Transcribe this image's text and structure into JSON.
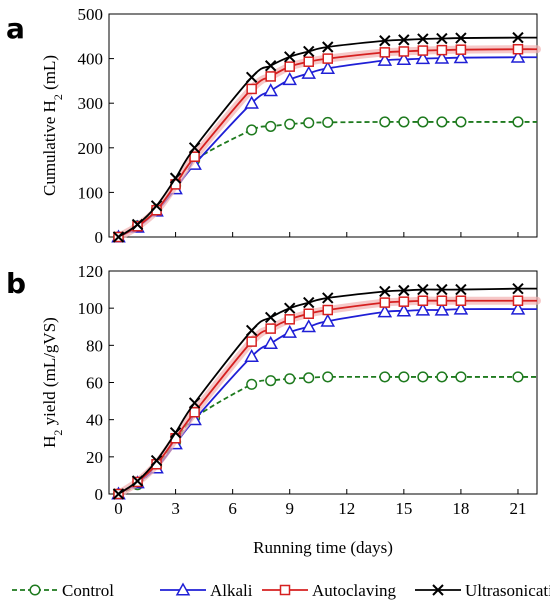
{
  "figure": {
    "legend": {
      "placement": "bottom",
      "items": [
        {
          "name": "Control",
          "color": "#1e7a1e",
          "marker": "circle",
          "dash": "dashed"
        },
        {
          "name": "Alkali",
          "color": "#1f1fd6",
          "marker": "triangle",
          "dash": "solid"
        },
        {
          "name": "Autoclaving",
          "color": "#d62020",
          "marker": "square",
          "dash": "solid"
        },
        {
          "name": "Ultrasonication",
          "color": "#000000",
          "marker": "x",
          "dash": "solid"
        }
      ]
    }
  },
  "chart_data": [
    {
      "panel": "a",
      "type": "line",
      "ylabel": "Cumulative H2 (mL)",
      "ylabel_main": "Cumulative H",
      "ylabel_sub": "2",
      "ylabel_tail": " (mL)",
      "xlabel": "",
      "xlim": [
        -0.5,
        22
      ],
      "ylim": [
        0,
        500
      ],
      "yticks": [
        0,
        100,
        200,
        300,
        400,
        500
      ],
      "xticks": [
        0,
        3,
        6,
        9,
        12,
        15,
        18,
        21
      ],
      "grid": false,
      "x": [
        0,
        1,
        2,
        3,
        4,
        7,
        8,
        9,
        10,
        11,
        14,
        15,
        16,
        17,
        18,
        21,
        22
      ],
      "series": [
        {
          "name": "Control",
          "values": [
            0,
            25,
            62,
            115,
            172,
            240,
            248,
            253,
            256,
            257,
            258,
            258,
            258,
            258,
            258,
            258,
            258
          ]
        },
        {
          "name": "Alkali",
          "values": [
            0,
            22,
            58,
            108,
            163,
            300,
            328,
            353,
            367,
            378,
            396,
            398,
            400,
            401,
            402,
            403,
            403
          ]
        },
        {
          "name": "Autoclaving",
          "values": [
            0,
            24,
            60,
            118,
            180,
            332,
            360,
            382,
            393,
            400,
            414,
            416,
            418,
            419,
            420,
            421,
            421
          ]
        },
        {
          "name": "Ultrasonication",
          "values": [
            0,
            28,
            70,
            132,
            200,
            358,
            384,
            404,
            416,
            426,
            440,
            442,
            444,
            445,
            446,
            447,
            447
          ]
        }
      ]
    },
    {
      "panel": "b",
      "type": "line",
      "ylabel": "H2 yield (mL/gVS)",
      "ylabel_main": "H",
      "ylabel_sub": "2",
      "ylabel_tail": " yield (mL/gVS)",
      "xlabel": "Running time (days)",
      "xlim": [
        -0.5,
        22
      ],
      "ylim": [
        0,
        120
      ],
      "yticks": [
        0,
        20,
        40,
        60,
        80,
        100,
        120
      ],
      "xticks": [
        0,
        3,
        6,
        9,
        12,
        15,
        18,
        21
      ],
      "grid": false,
      "x": [
        0,
        1,
        2,
        3,
        4,
        7,
        8,
        9,
        10,
        11,
        14,
        15,
        16,
        17,
        18,
        21,
        22
      ],
      "series": [
        {
          "name": "Control",
          "values": [
            0,
            5,
            15,
            28,
            41,
            59,
            61,
            62,
            62.5,
            63,
            63,
            63,
            63,
            63,
            63,
            63,
            63
          ]
        },
        {
          "name": "Alkali",
          "values": [
            0,
            6,
            14,
            27,
            40,
            74,
            81,
            87,
            90,
            93,
            98,
            98.5,
            99,
            99,
            99.5,
            99.5,
            99.5
          ]
        },
        {
          "name": "Autoclaving",
          "values": [
            0,
            6.5,
            16,
            30,
            44,
            82,
            89,
            94,
            97,
            99,
            103,
            103.5,
            104,
            104,
            104,
            104,
            104
          ]
        },
        {
          "name": "Ultrasonication",
          "values": [
            0,
            7,
            18,
            33,
            49,
            88,
            95,
            100,
            103,
            105.5,
            109,
            109.5,
            110,
            110,
            110,
            110.5,
            110.5
          ]
        }
      ]
    }
  ]
}
